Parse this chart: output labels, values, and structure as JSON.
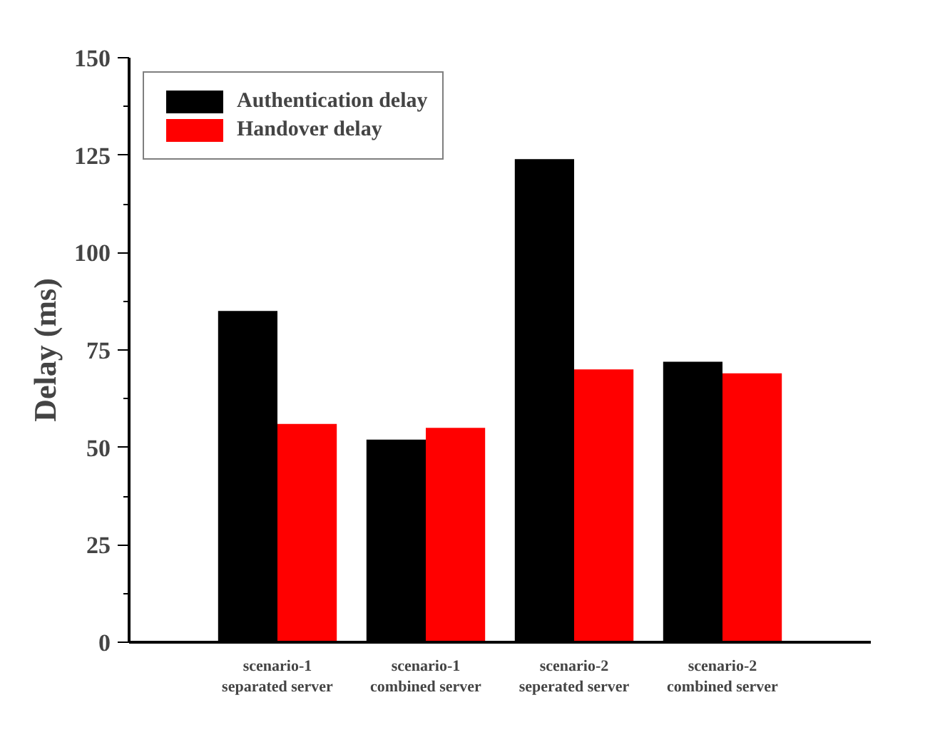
{
  "chart_data": {
    "type": "bar",
    "ylabel": "Delay (ms)",
    "categories": [
      "scenario-1\nseparated server",
      "scenario-1\ncombined server",
      "scenario-2\nseperated server",
      "scenario-2\ncombined server"
    ],
    "series": [
      {
        "name": "Authentication delay",
        "color": "#000000",
        "values": [
          85,
          52,
          124,
          72
        ]
      },
      {
        "name": "Handover delay",
        "color": "#ff0000",
        "values": [
          56,
          55,
          70,
          69
        ]
      }
    ],
    "ylim": [
      0,
      150
    ],
    "yticks": [
      0,
      25,
      50,
      75,
      100,
      125,
      150
    ],
    "grid": false,
    "legend": "top left"
  }
}
